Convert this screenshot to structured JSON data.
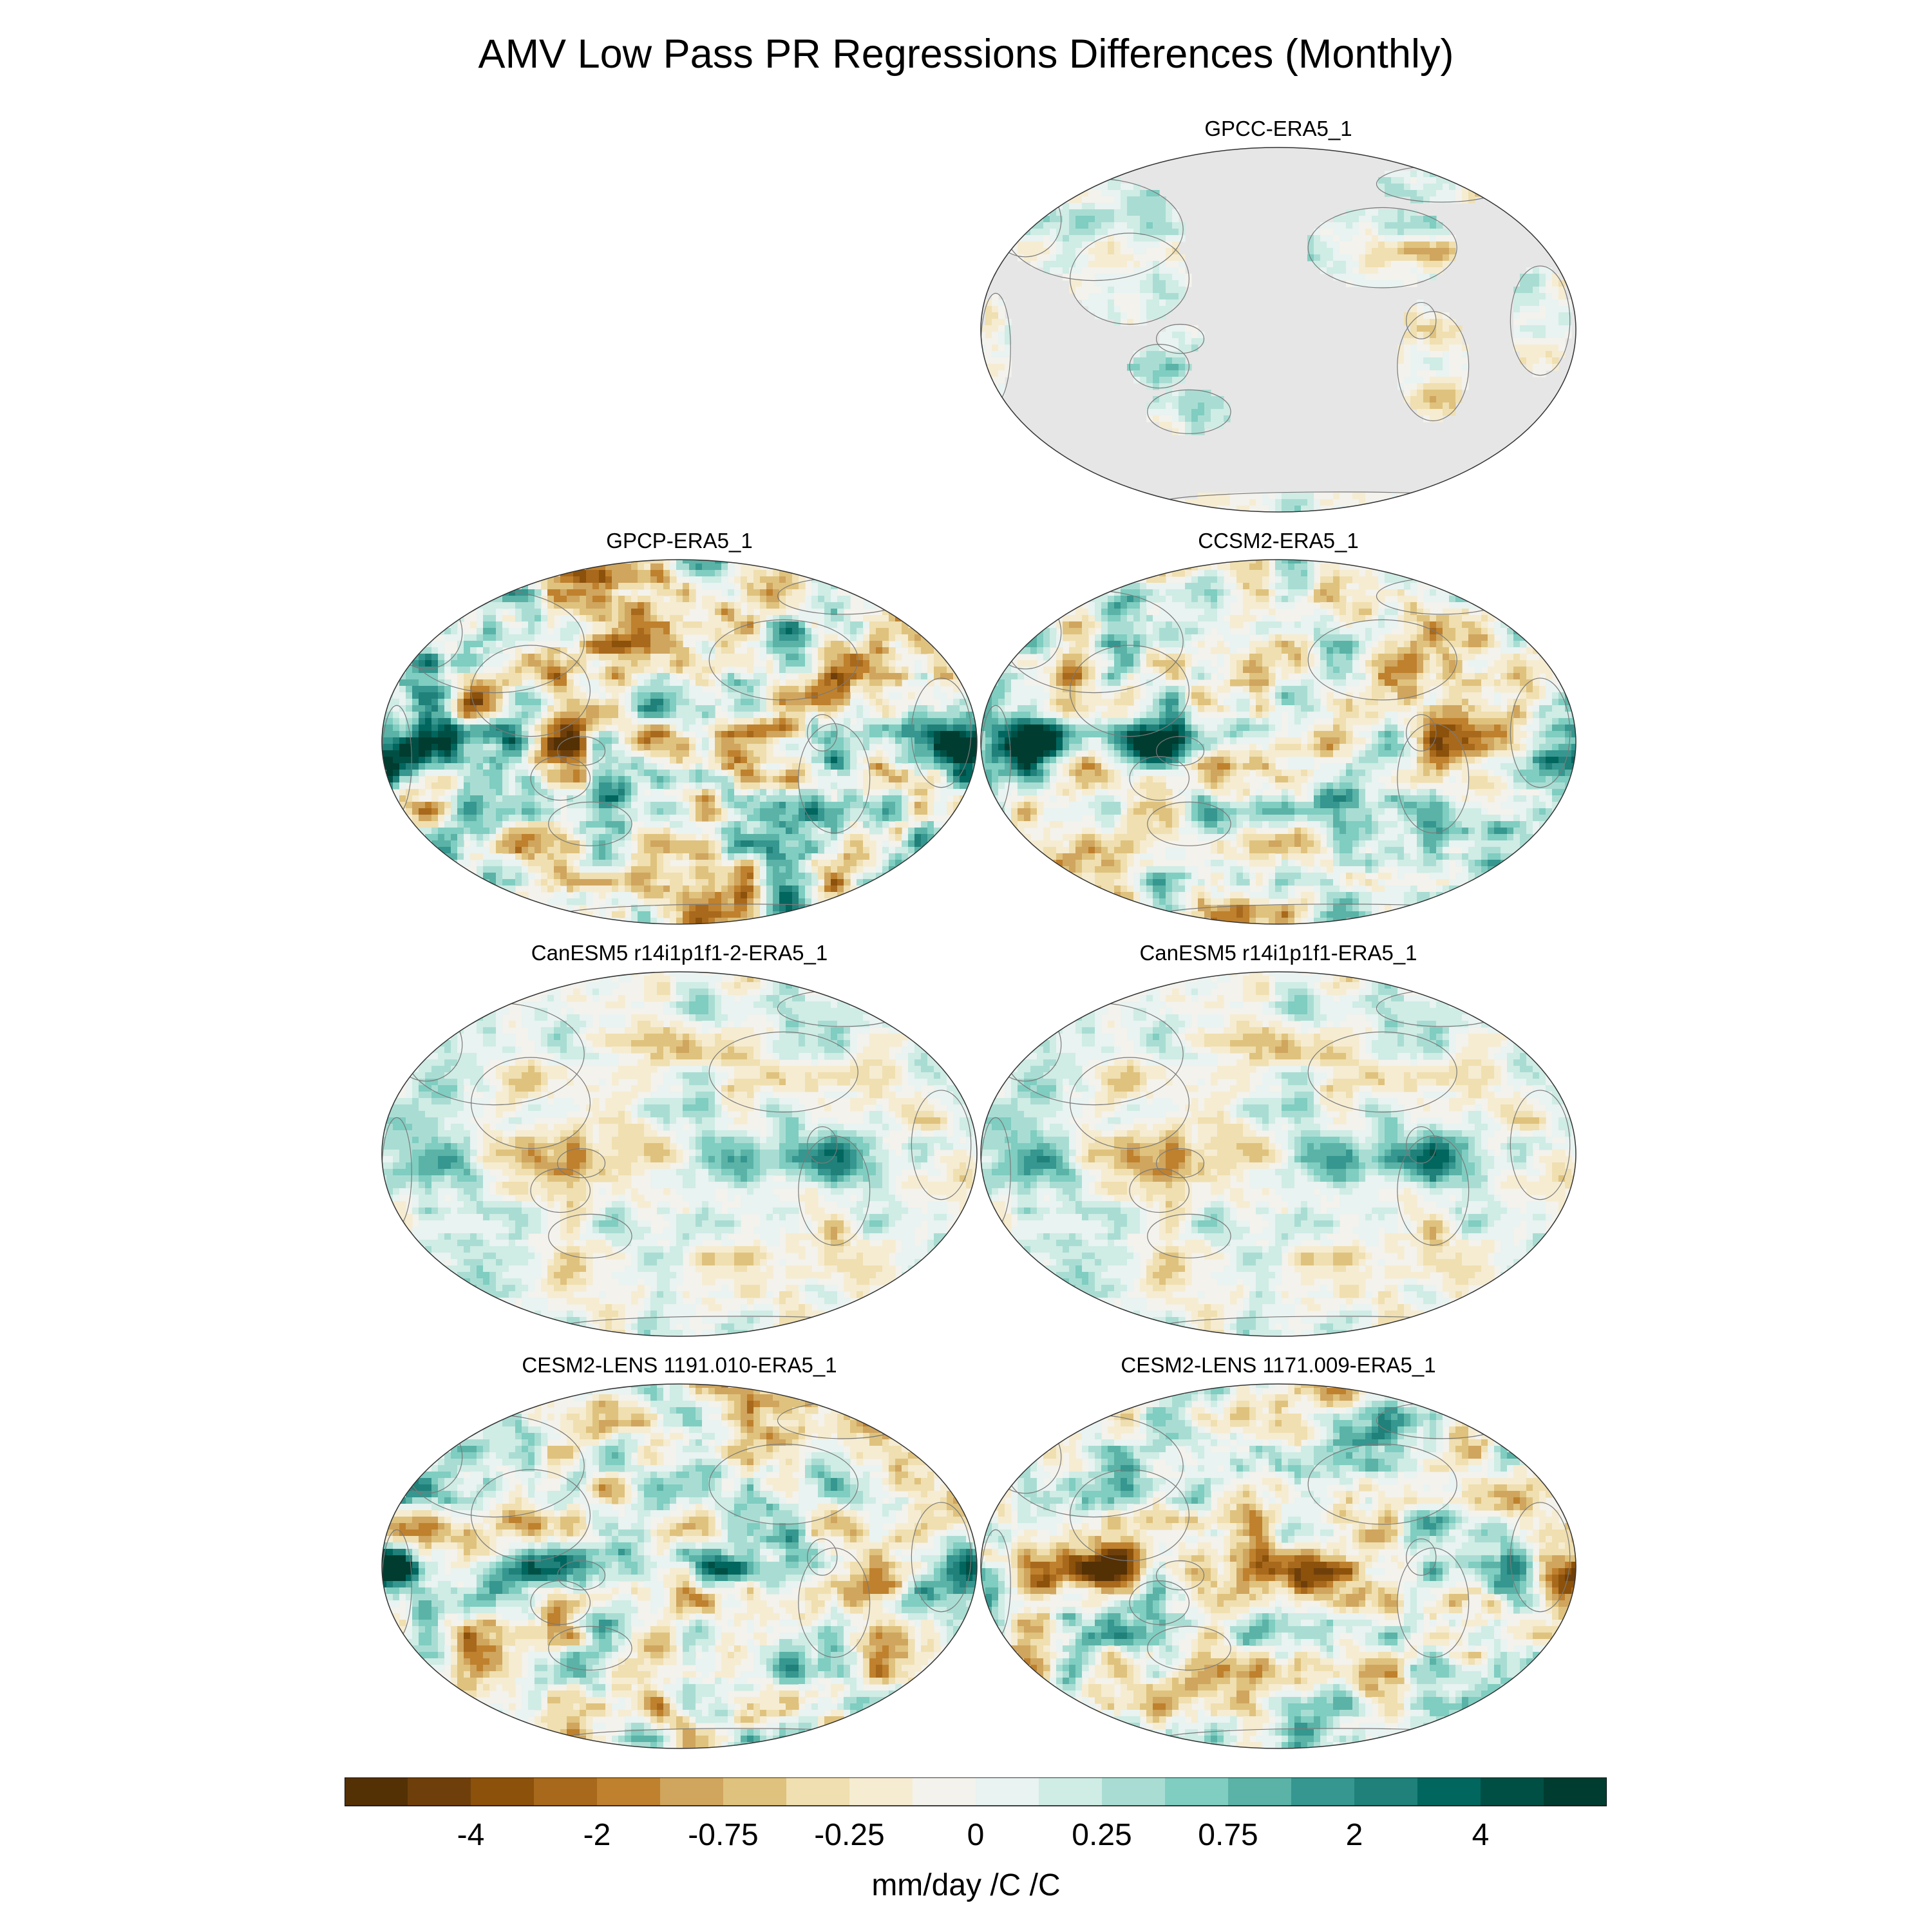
{
  "title": "AMV Low Pass PR Regressions Differences (Monthly)",
  "chart_data": {
    "type": "heatmap",
    "title": "AMV Low Pass PR Regressions Differences (Monthly)",
    "projection": "Winkel Tripel / elliptical global, Pacific-centered",
    "panels": [
      {
        "name": "GPCC-ERA5_1",
        "coverage": "land only",
        "ocean_fill": "#e6e6e6"
      },
      {
        "name": "GPCP-ERA5_1",
        "coverage": "global"
      },
      {
        "name": "CCSM2-ERA5_1",
        "coverage": "global"
      },
      {
        "name": "CanESM5 r14i1p1f1-2-ERA5_1",
        "coverage": "global"
      },
      {
        "name": "CanESM5 r14i1p1f1-ERA5_1",
        "coverage": "global"
      },
      {
        "name": "CESM2-LENS 1191.010-ERA5_1",
        "coverage": "global"
      },
      {
        "name": "CESM2-LENS 1171.009-ERA5_1",
        "coverage": "global"
      }
    ],
    "colorbar": {
      "units": "mm/day /C /C",
      "tick_labels": [
        "-4",
        "-2",
        "-0.75",
        "-0.25",
        "0",
        "0.25",
        "0.75",
        "2",
        "4"
      ],
      "colors": [
        "#543005",
        "#6f3f0b",
        "#8c510a",
        "#a8691c",
        "#bf812d",
        "#d0a55e",
        "#dfc27d",
        "#f0dfb0",
        "#f5ecd2",
        "#f4f2ec",
        "#e9f3f1",
        "#cfece5",
        "#a9ddd3",
        "#80cdc1",
        "#5ab3a6",
        "#35978f",
        "#1f8179",
        "#01665e",
        "#004f45",
        "#003c30"
      ]
    }
  }
}
